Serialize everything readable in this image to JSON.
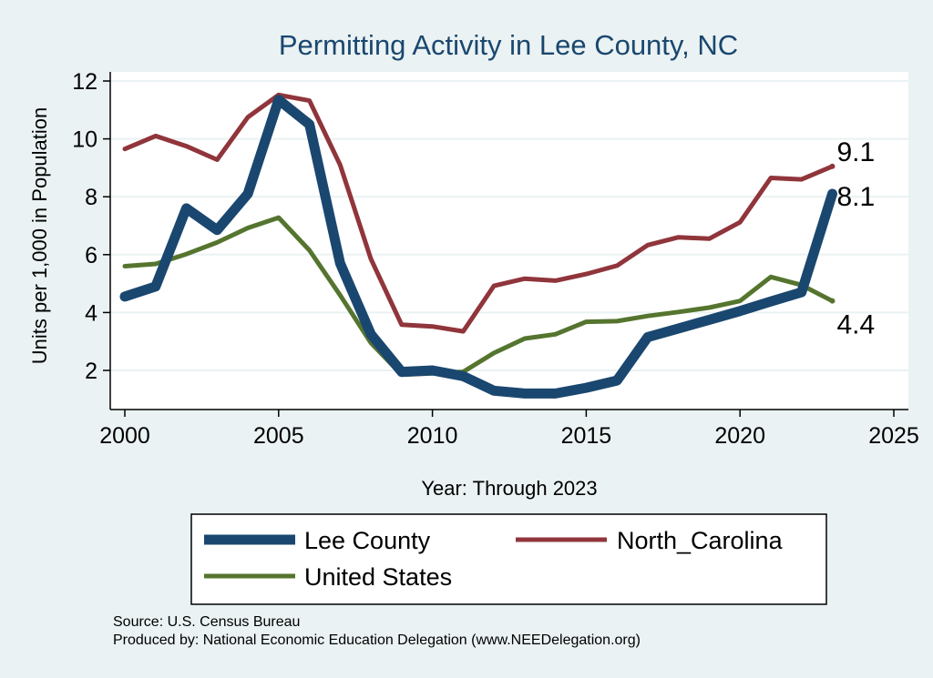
{
  "chart_data": {
    "type": "line",
    "title": "Permitting Activity in Lee County, NC",
    "xlabel": "Year: Through 2023",
    "ylabel": "Units per 1,000 in Population",
    "xlim": [
      1999,
      2026
    ],
    "ylim": [
      0.5,
      12.5
    ],
    "xticks": [
      2000,
      2005,
      2010,
      2015,
      2020,
      2025
    ],
    "yticks": [
      2,
      4,
      6,
      8,
      10,
      12
    ],
    "grid": true,
    "x": [
      2000,
      2001,
      2002,
      2003,
      2004,
      2005,
      2006,
      2007,
      2008,
      2009,
      2010,
      2011,
      2012,
      2013,
      2014,
      2015,
      2016,
      2017,
      2018,
      2019,
      2020,
      2021,
      2022,
      2023
    ],
    "series": [
      {
        "name": "Lee County",
        "color": "#1a476f",
        "width": "thick",
        "values": [
          4.55,
          4.9,
          7.6,
          6.85,
          8.1,
          11.35,
          10.5,
          5.7,
          3.25,
          1.95,
          2.0,
          1.8,
          1.3,
          1.2,
          1.2,
          1.4,
          1.65,
          3.15,
          3.45,
          3.75,
          4.05,
          4.38,
          4.7,
          8.1
        ],
        "end_label": "8.1"
      },
      {
        "name": "North_Carolina",
        "color": "#90353b",
        "width": "medium",
        "values": [
          9.65,
          10.1,
          9.75,
          9.28,
          10.75,
          11.52,
          11.32,
          9.1,
          5.85,
          3.58,
          3.52,
          3.35,
          4.92,
          5.17,
          5.1,
          5.33,
          5.62,
          6.33,
          6.6,
          6.55,
          7.12,
          8.65,
          8.6,
          9.05
        ],
        "end_label": "9.1"
      },
      {
        "name": "United States",
        "color": "#55752f",
        "width": "medium",
        "values": [
          5.6,
          5.68,
          6.02,
          6.42,
          6.92,
          7.28,
          6.15,
          4.6,
          2.95,
          1.85,
          1.9,
          1.95,
          2.6,
          3.1,
          3.25,
          3.68,
          3.7,
          3.88,
          4.02,
          4.17,
          4.4,
          5.23,
          4.95,
          4.4
        ],
        "end_label": "4.4"
      }
    ],
    "legend": [
      {
        "name": "Lee County",
        "color": "#1a476f",
        "width": "thick"
      },
      {
        "name": "North_Carolina",
        "color": "#90353b",
        "width": "medium"
      },
      {
        "name": "United States",
        "color": "#55752f",
        "width": "medium"
      }
    ],
    "source_lines": [
      "Source: U.S. Census Bureau",
      "Produced by: National Economic Education Delegation (www.NEEDelegation.org)"
    ]
  }
}
